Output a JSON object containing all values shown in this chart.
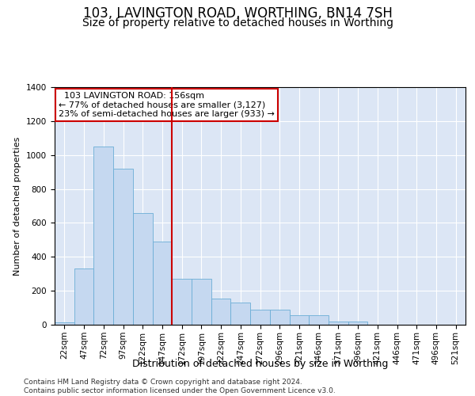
{
  "title": "103, LAVINGTON ROAD, WORTHING, BN14 7SH",
  "subtitle": "Size of property relative to detached houses in Worthing",
  "xlabel": "Distribution of detached houses by size in Worthing",
  "ylabel": "Number of detached properties",
  "footer": "Contains HM Land Registry data © Crown copyright and database right 2024.\nContains public sector information licensed under the Open Government Licence v3.0.",
  "categories": [
    "22sqm",
    "47sqm",
    "72sqm",
    "97sqm",
    "122sqm",
    "147sqm",
    "172sqm",
    "197sqm",
    "222sqm",
    "247sqm",
    "272sqm",
    "296sqm",
    "321sqm",
    "346sqm",
    "371sqm",
    "396sqm",
    "421sqm",
    "446sqm",
    "471sqm",
    "496sqm",
    "521sqm"
  ],
  "values": [
    15,
    330,
    1050,
    920,
    660,
    490,
    270,
    270,
    155,
    130,
    90,
    90,
    55,
    55,
    20,
    20,
    0,
    0,
    0,
    0,
    0
  ],
  "bar_color": "#c5d8f0",
  "bar_edge_color": "#6baed6",
  "vline_x": 5.5,
  "vline_color": "#cc0000",
  "annotation_text": "  103 LAVINGTON ROAD: 156sqm\n← 77% of detached houses are smaller (3,127)\n23% of semi-detached houses are larger (933) →",
  "annotation_box_color": "white",
  "annotation_box_edge_color": "#cc0000",
  "ylim": [
    0,
    1400
  ],
  "yticks": [
    0,
    200,
    400,
    600,
    800,
    1000,
    1200,
    1400
  ],
  "background_color": "#dce6f5",
  "grid_color": "white",
  "title_fontsize": 12,
  "subtitle_fontsize": 10,
  "xlabel_fontsize": 9,
  "ylabel_fontsize": 8,
  "tick_fontsize": 7.5,
  "annotation_fontsize": 8,
  "footer_fontsize": 6.5
}
